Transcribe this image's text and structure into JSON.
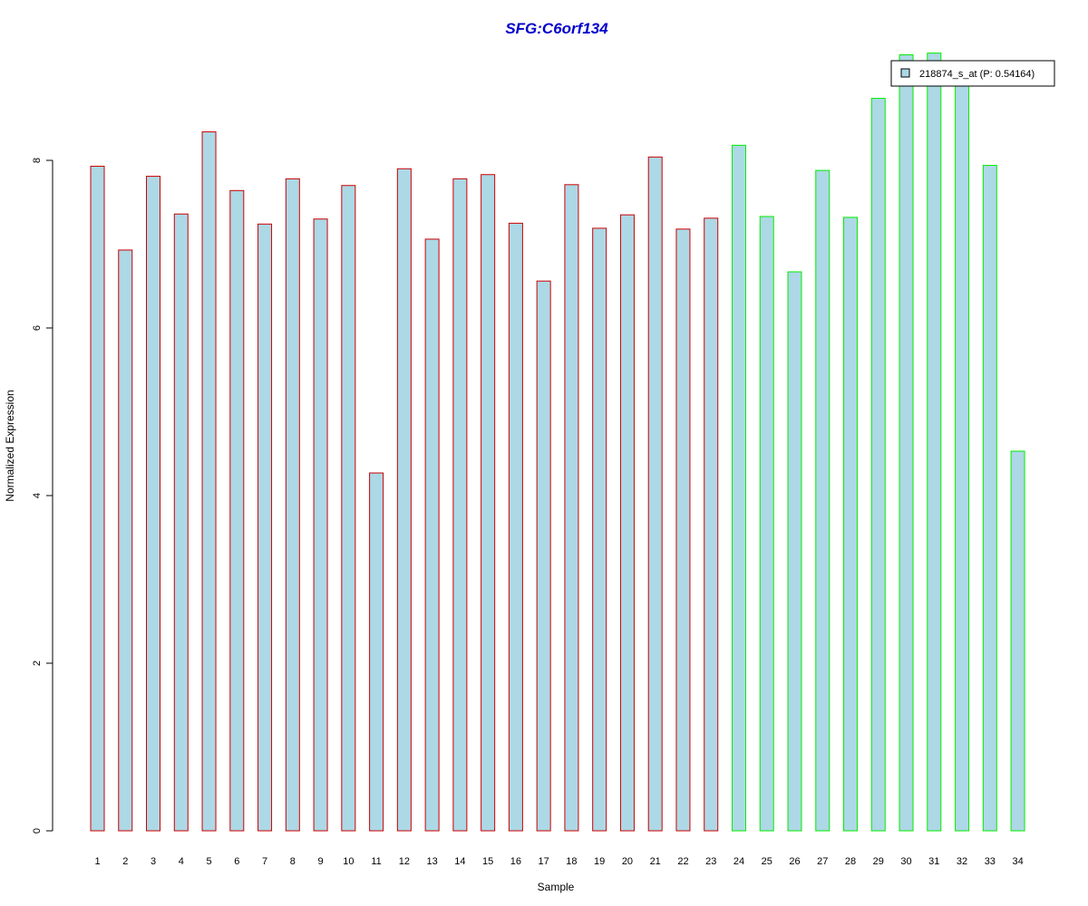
{
  "chart_data": {
    "type": "bar",
    "title": "SFG:C6orf134",
    "xlabel": "Sample",
    "ylabel": "Normalized Expression",
    "categories": [
      "1",
      "2",
      "3",
      "4",
      "5",
      "6",
      "7",
      "8",
      "9",
      "10",
      "11",
      "12",
      "13",
      "14",
      "15",
      "16",
      "17",
      "18",
      "19",
      "20",
      "21",
      "22",
      "23",
      "24",
      "25",
      "26",
      "27",
      "28",
      "29",
      "30",
      "31",
      "32",
      "33",
      "34"
    ],
    "series": [
      {
        "name": "218874_s_at (P: 0.54164)",
        "values": [
          7.93,
          6.93,
          7.81,
          7.36,
          8.34,
          7.64,
          7.24,
          7.78,
          7.3,
          7.7,
          4.27,
          7.9,
          7.06,
          7.78,
          7.83,
          7.25,
          6.56,
          7.71,
          7.19,
          7.35,
          8.04,
          7.18,
          7.31,
          8.18,
          7.33,
          6.67,
          7.88,
          7.32,
          8.74,
          9.26,
          9.28,
          8.95,
          7.94,
          4.53
        ]
      }
    ],
    "group_of_bar": [
      1,
      1,
      1,
      1,
      1,
      1,
      1,
      1,
      1,
      1,
      1,
      1,
      1,
      1,
      1,
      1,
      1,
      1,
      1,
      1,
      1,
      1,
      1,
      2,
      2,
      2,
      2,
      2,
      2,
      2,
      2,
      2,
      2,
      2
    ],
    "yticks": [
      0,
      2,
      4,
      6,
      8
    ],
    "ylim": [
      0,
      9.3
    ],
    "grid": false,
    "legend_position": "top-right",
    "colors": {
      "title": "#0000cc",
      "bar_fill": "#add8e6",
      "group_1_border": "#cc0000",
      "group_2_border": "#00ee00",
      "axis": "#000000"
    }
  }
}
